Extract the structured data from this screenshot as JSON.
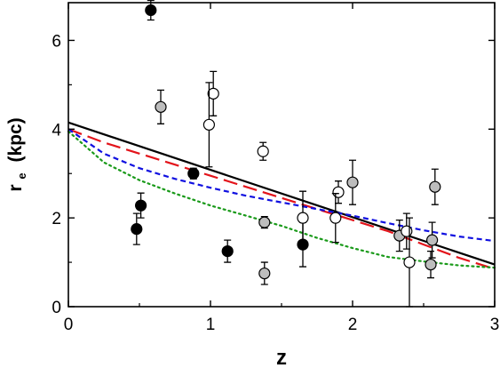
{
  "chart_data": {
    "type": "scatter",
    "title": "",
    "xlabel": "z",
    "ylabel_main": "r",
    "ylabel_sub": "e",
    "ylabel_rest": "(kpc)",
    "xlim": [
      0,
      3
    ],
    "ylim": [
      0,
      6.85
    ],
    "xticks": [
      0,
      1,
      2,
      3
    ],
    "yticks": [
      0,
      2,
      4,
      6
    ],
    "grid": false,
    "legend": "none",
    "point_groups": [
      {
        "marker": "filled-black",
        "fill": "#000000",
        "points": [
          {
            "x": 0.58,
            "y": 6.68,
            "err": 0.22
          },
          {
            "x": 0.88,
            "y": 3.0,
            "err": 0.12
          },
          {
            "x": 0.51,
            "y": 2.28,
            "err": 0.28
          },
          {
            "x": 0.48,
            "y": 1.75,
            "err": 0.35
          },
          {
            "x": 1.12,
            "y": 1.25,
            "err": 0.25
          },
          {
            "x": 1.65,
            "y": 1.4,
            "err": 0.5
          }
        ]
      },
      {
        "marker": "gray",
        "fill": "#bdbdbd",
        "points": [
          {
            "x": 0.65,
            "y": 4.5,
            "err": 0.38
          },
          {
            "x": 1.38,
            "y": 1.9,
            "err": 0.13
          },
          {
            "x": 1.38,
            "y": 0.75,
            "err": 0.25
          },
          {
            "x": 2.0,
            "y": 2.8,
            "err": 0.5
          },
          {
            "x": 2.33,
            "y": 1.6,
            "err": 0.35
          },
          {
            "x": 2.58,
            "y": 2.7,
            "err": 0.4
          },
          {
            "x": 2.56,
            "y": 1.5,
            "err": 0.4
          },
          {
            "x": 2.55,
            "y": 0.95,
            "err": 0.3
          }
        ]
      },
      {
        "marker": "open",
        "fill": "#ffffff",
        "points": [
          {
            "x": 1.02,
            "y": 4.8,
            "err": 0.5
          },
          {
            "x": 0.99,
            "y": 4.1,
            "err": 0.95
          },
          {
            "x": 1.37,
            "y": 3.5,
            "err": 0.2
          },
          {
            "x": 1.65,
            "y": 2.0,
            "err": 0.6
          },
          {
            "x": 1.9,
            "y": 2.58,
            "err": 0.25
          },
          {
            "x": 1.88,
            "y": 2.0,
            "err": 0.55
          },
          {
            "x": 2.38,
            "y": 1.7,
            "err": 0.4
          },
          {
            "x": 2.4,
            "y": 1.0,
            "err": 1.0
          }
        ]
      }
    ],
    "curves": [
      {
        "style": "solid",
        "color": "#000000",
        "x": [
          0,
          3
        ],
        "y": [
          4.15,
          0.95
        ]
      },
      {
        "style": "long-dash",
        "color": "#e3141b",
        "x": [
          0,
          0.25,
          0.5,
          0.75,
          1.0,
          1.25,
          1.5,
          1.75,
          2.0,
          2.25,
          2.5,
          2.75,
          3.0
        ],
        "y": [
          4.0,
          3.7,
          3.45,
          3.2,
          2.95,
          2.7,
          2.45,
          2.2,
          1.95,
          1.7,
          1.4,
          1.1,
          0.85
        ]
      },
      {
        "style": "short-dash",
        "color": "#1010e0",
        "x": [
          0,
          0.25,
          0.5,
          0.75,
          1.0,
          1.25,
          1.5,
          1.75,
          2.0,
          2.25,
          2.5,
          2.75,
          3.0
        ],
        "y": [
          4.0,
          3.45,
          3.12,
          2.88,
          2.68,
          2.5,
          2.35,
          2.2,
          2.05,
          1.88,
          1.72,
          1.58,
          1.48
        ]
      },
      {
        "style": "dotted",
        "color": "#1a9a1a",
        "x": [
          0,
          0.25,
          0.5,
          0.75,
          1.0,
          1.25,
          1.5,
          1.75,
          2.0,
          2.25,
          2.5,
          2.75,
          3.0
        ],
        "y": [
          3.95,
          3.25,
          2.85,
          2.55,
          2.28,
          2.05,
          1.82,
          1.55,
          1.32,
          1.12,
          1.02,
          0.93,
          0.88
        ]
      }
    ]
  }
}
